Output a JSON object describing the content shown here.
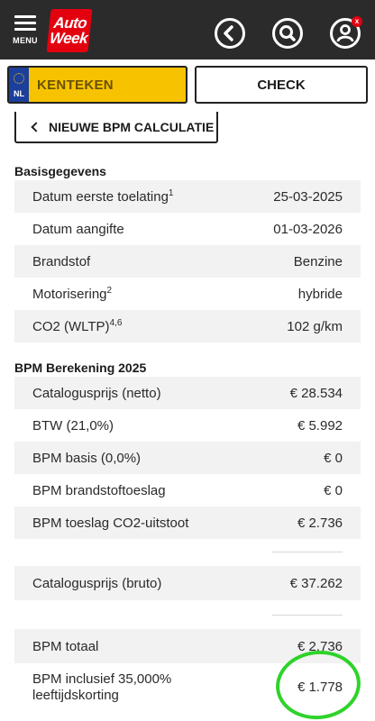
{
  "header": {
    "menu_label": "MENU",
    "logo_line1": "Auto",
    "logo_line2": "Week",
    "badge": "x"
  },
  "plate": {
    "country_code": "NL",
    "placeholder": "KENTEKEN"
  },
  "check_label": "CHECK",
  "new_calc_label": "NIEUWE BPM CALCULATIE",
  "basis": {
    "title": "Basisgegevens",
    "rows": [
      {
        "label": "Datum eerste toelating",
        "sup": "1",
        "value": "25-03-2025"
      },
      {
        "label": "Datum aangifte",
        "sup": "",
        "value": "01-03-2026"
      },
      {
        "label": "Brandstof",
        "sup": "",
        "value": "Benzine"
      },
      {
        "label": "Motorisering",
        "sup": "2",
        "value": "hybride"
      },
      {
        "label": "CO2 (WLTP)",
        "sup": "4,6",
        "value": "102 g/km"
      }
    ]
  },
  "bpm": {
    "title": "BPM Berekening 2025",
    "rows": [
      {
        "label": "Catalogusprijs (netto)",
        "value": "€ 28.534"
      },
      {
        "label": "BTW (21,0%)",
        "value": "€ 5.992"
      },
      {
        "label": "BPM basis (0,0%)",
        "value": "€ 0"
      },
      {
        "label": "BPM brandstoftoeslag",
        "value": "€ 0"
      },
      {
        "label": "BPM toeslag CO2-uitstoot",
        "value": "€ 2.736"
      }
    ],
    "bruto_label": "Catalogusprijs (bruto)",
    "bruto_value": "€ 37.262",
    "totaal_label": "BPM totaal",
    "totaal_value": "€ 2.736",
    "incl_label_line1": "BPM inclusief 35,000%",
    "incl_label_line2": "leeftijdskorting",
    "incl_value": "€ 1.778"
  },
  "colors": {
    "header_bg": "#2b2b2b",
    "brand_red": "#e3000f",
    "plate_yellow": "#f7c300",
    "highlight_green": "#2fd32a"
  }
}
